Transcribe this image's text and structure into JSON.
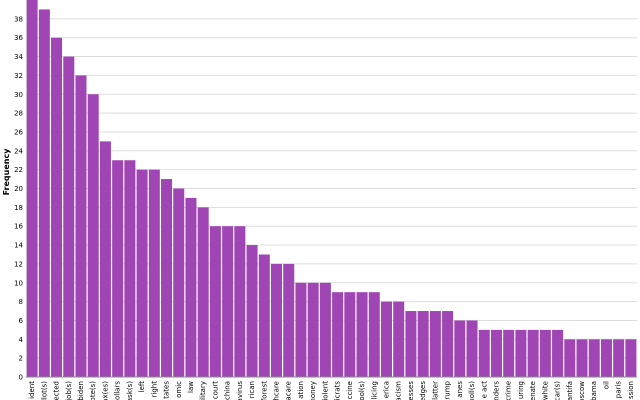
{
  "chart_data": {
    "type": "bar",
    "ylabel": "Frequency",
    "xlabel": "",
    "ylim": [
      0,
      40
    ],
    "yticks": [
      0,
      2,
      4,
      6,
      8,
      10,
      12,
      14,
      16,
      18,
      20,
      22,
      24,
      26,
      28,
      30,
      32,
      34,
      36,
      38
    ],
    "grid": true,
    "bar_color": "#a046b4",
    "categories": [
      "ident",
      "llot(s)",
      "ected",
      "job(s)",
      "biden",
      "ote(s)",
      "ax(es)",
      "ollars",
      "ask(s)",
      "left",
      "right",
      "tates",
      "omic",
      "law",
      "ilitary",
      "court",
      "china",
      "avirus",
      "rican",
      "forest",
      "hcare",
      "acare",
      "ation",
      "noney",
      "iolent",
      "icrats",
      "ccine",
      "ool(s)",
      "olicing",
      "erica",
      "acism",
      "esses",
      "edges",
      "latter",
      "rump",
      "anes",
      "poll(s)",
      "e act",
      "nders",
      "crime",
      "uring",
      "enate",
      "white",
      "car(s)",
      "antifa",
      "oscow",
      "bama",
      "oil",
      "paris",
      "ssion"
    ],
    "values": [
      40,
      39,
      36,
      34,
      32,
      30,
      25,
      23,
      23,
      22,
      22,
      21,
      20,
      19,
      18,
      16,
      16,
      16,
      14,
      13,
      12,
      12,
      10,
      10,
      10,
      9,
      9,
      9,
      9,
      8,
      8,
      7,
      7,
      7,
      7,
      6,
      6,
      5,
      5,
      5,
      5,
      5,
      5,
      5,
      4,
      4,
      4,
      4,
      4,
      4
    ]
  }
}
